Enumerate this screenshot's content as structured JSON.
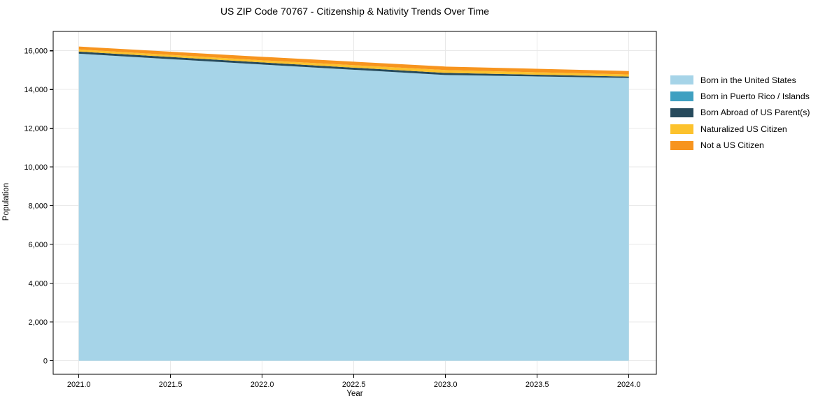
{
  "title": "US ZIP Code 70767 - Citizenship & Nativity Trends Over Time",
  "chart_data": {
    "type": "area",
    "stacked": true,
    "x": [
      2021,
      2022,
      2023,
      2024
    ],
    "series": [
      {
        "name": "Born in the United States",
        "color": "#a6d4e8",
        "values": [
          15850,
          15290,
          14750,
          14600
        ]
      },
      {
        "name": "Born in Puerto Rico / Islands",
        "color": "#3fa0c1",
        "values": [
          0,
          0,
          0,
          0
        ]
      },
      {
        "name": "Born Abroad of US Parent(s)",
        "color": "#264a5c",
        "values": [
          110,
          110,
          110,
          70
        ]
      },
      {
        "name": "Naturalized US Citizen",
        "color": "#fcc22d",
        "values": [
          110,
          110,
          145,
          110
        ]
      },
      {
        "name": "Not a US Citizen",
        "color": "#f7941e",
        "values": [
          150,
          180,
          180,
          175
        ]
      }
    ],
    "title": "US ZIP Code 70767 - Citizenship & Nativity Trends Over Time",
    "xlabel": "Year",
    "ylabel": "Population",
    "xlim": [
      2020.86,
      2024.15
    ],
    "ylim": [
      -700,
      17000
    ],
    "xticks": [
      2021.0,
      2021.5,
      2022.0,
      2022.5,
      2023.0,
      2023.5,
      2024.0
    ],
    "xtick_labels": [
      "2021.0",
      "2021.5",
      "2022.0",
      "2022.5",
      "2023.0",
      "2023.5",
      "2024.0"
    ],
    "yticks": [
      0,
      2000,
      4000,
      6000,
      8000,
      10000,
      12000,
      14000,
      16000
    ],
    "ytick_labels": [
      "0",
      "2,000",
      "4,000",
      "6,000",
      "8,000",
      "10,000",
      "12,000",
      "14,000",
      "16,000"
    ],
    "grid": true,
    "legend_position": "right"
  },
  "colors": {
    "grid": "#e8e8e8",
    "axis": "#000000",
    "text": "#000000",
    "background": "#ffffff"
  }
}
